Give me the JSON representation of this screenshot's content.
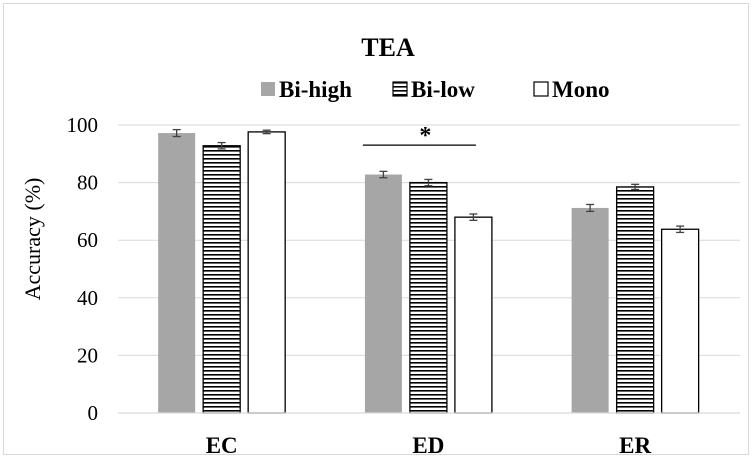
{
  "chart_data": {
    "type": "bar",
    "title": "TEA",
    "xlabel": "",
    "ylabel": "Accuracy (%)",
    "ylim": [
      0,
      100
    ],
    "yticks": [
      0,
      20,
      40,
      60,
      80,
      100
    ],
    "grid": true,
    "legend_position": "top",
    "categories": [
      "EC",
      "ED",
      "ER"
    ],
    "series": [
      {
        "name": "Bi-high",
        "values": [
          97.2,
          82.8,
          71.2
        ],
        "errors": [
          1.2,
          1.1,
          1.2
        ],
        "color": "#a6a6a6",
        "pattern": "solid"
      },
      {
        "name": "Bi-low",
        "values": [
          92.8,
          80.0,
          78.5
        ],
        "errors": [
          1.1,
          1.1,
          0.9
        ],
        "color": "#000000",
        "pattern": "horizontal-stripes"
      },
      {
        "name": "Mono",
        "values": [
          97.6,
          68.0,
          63.8
        ],
        "errors": [
          0.6,
          1.1,
          1.1
        ],
        "color": "#ffffff",
        "pattern": "outline"
      }
    ],
    "annotations": [
      {
        "text": "*",
        "category": "ED",
        "y": 93
      }
    ]
  }
}
